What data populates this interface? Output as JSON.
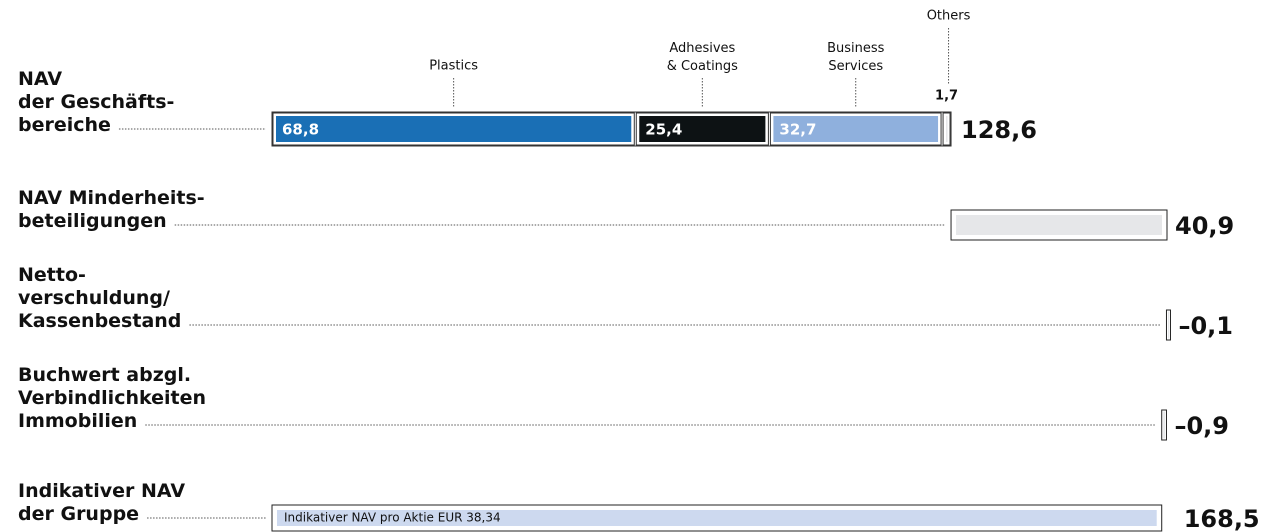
{
  "chart_data": {
    "type": "waterfall",
    "categories": [
      "NAV\nder Geschäfts-\nbereiche",
      "NAV Minderheits-\nbeteiligungen",
      "Netto-\nverschuldung/\nKassenbestand",
      "Buchwert abzgl.\nVerbindlichkeiten\nImmobilien",
      "Indikativer NAV\nder Gruppe"
    ],
    "values": [
      128.6,
      40.9,
      -0.1,
      -0.9,
      168.5
    ],
    "value_labels": [
      "128,6",
      "40,9",
      "–0,1",
      "–0,9",
      "168,5"
    ],
    "colors": [
      "#ffffff",
      "#e6e7e9",
      "#e6e7e9",
      "#e6e7e9",
      "#cdd9ef"
    ],
    "breakdown": {
      "names": [
        "Plastics",
        "Adhesives\n& Coatings",
        "Business\nServices",
        "Others"
      ],
      "values": [
        68.8,
        25.4,
        32.7,
        1.7
      ],
      "value_labels": [
        "68,8",
        "25,4",
        "32,7",
        "1,7"
      ],
      "colors": [
        "#1a6fb5",
        "#0d1214",
        "#8fb0dd",
        "#e6e7e9"
      ]
    },
    "note": "Indikativer NAV pro Aktie EUR 38,34"
  }
}
